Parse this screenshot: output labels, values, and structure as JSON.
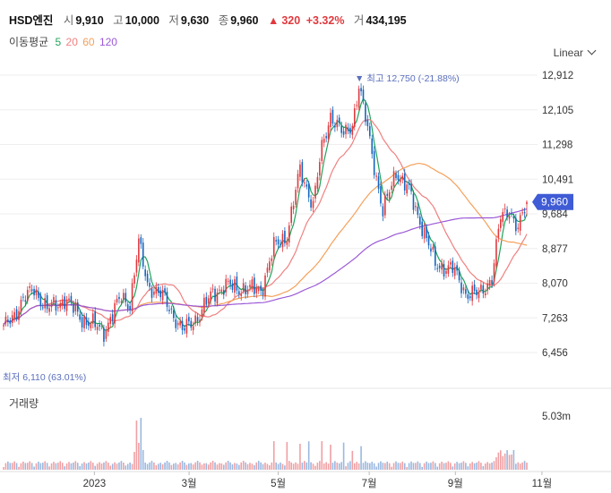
{
  "header": {
    "name": "HSD엔진",
    "open_label": "시",
    "open": "9,910",
    "high_label": "고",
    "high": "10,000",
    "low_label": "저",
    "low": "9,630",
    "close_label": "종",
    "close": "9,960",
    "change_arrow": "▲",
    "change": "320",
    "change_pct": "+3.32%",
    "volume_label": "거",
    "volume": "434,195"
  },
  "ma": {
    "label": "이동평균",
    "p5": "5",
    "p20": "20",
    "p60": "60",
    "p120": "120"
  },
  "scale_button": "Linear",
  "price_axis": [
    "12,912",
    "12,105",
    "11,298",
    "10,491",
    "9,684",
    "8,877",
    "8,070",
    "7,263",
    "6,456"
  ],
  "current_price_tag": "9,960",
  "max_annotation": "▼ 최고 12,750 (-21.88%)",
  "min_annotation": "최저 6,110 (63.01%)",
  "volume_panel": {
    "label": "거래량",
    "axis": "5.03m"
  },
  "x_axis": [
    "2023",
    "3월",
    "5월",
    "7월",
    "9월",
    "11월"
  ],
  "colors": {
    "up": "#e0393e",
    "down": "#1565c0",
    "ma5": "#21a35a",
    "ma20": "#f08080",
    "ma60": "#f5a05a",
    "ma120": "#9b59d6",
    "tag": "#3f5bd5"
  },
  "chart_data": {
    "type": "candlestick",
    "y_range": [
      6456,
      12912
    ],
    "volume_range_max": "5.03m",
    "series": [
      {
        "name": "5",
        "color": "#21a35a"
      },
      {
        "name": "20",
        "color": "#f08080"
      },
      {
        "name": "60",
        "color": "#f5a05a"
      },
      {
        "name": "120",
        "color": "#9b59d6"
      }
    ],
    "last": {
      "open": 9910,
      "high": 10000,
      "low": 9630,
      "close": 9960
    },
    "max": 12750,
    "min": 6110,
    "anchors": [
      [
        0,
        7000
      ],
      [
        8,
        7600
      ],
      [
        14,
        7950
      ],
      [
        20,
        7450
      ],
      [
        28,
        7700
      ],
      [
        36,
        7250
      ],
      [
        46,
        6950
      ],
      [
        54,
        7750
      ],
      [
        58,
        7600
      ],
      [
        62,
        9000
      ],
      [
        66,
        8050
      ],
      [
        74,
        7700
      ],
      [
        82,
        6950
      ],
      [
        90,
        7350
      ],
      [
        96,
        7850
      ],
      [
        102,
        8000
      ],
      [
        110,
        7950
      ],
      [
        118,
        7900
      ],
      [
        124,
        8900
      ],
      [
        130,
        9200
      ],
      [
        136,
        10700
      ],
      [
        142,
        9900
      ],
      [
        146,
        11200
      ],
      [
        150,
        12000
      ],
      [
        156,
        11500
      ],
      [
        160,
        11800
      ],
      [
        163,
        12650
      ],
      [
        168,
        11400
      ],
      [
        174,
        9700
      ],
      [
        180,
        10700
      ],
      [
        186,
        10200
      ],
      [
        192,
        9400
      ],
      [
        198,
        8500
      ],
      [
        206,
        8400
      ],
      [
        212,
        7850
      ],
      [
        218,
        7800
      ],
      [
        224,
        8200
      ],
      [
        228,
        9600
      ],
      [
        232,
        9800
      ],
      [
        236,
        9300
      ],
      [
        240,
        9960
      ]
    ]
  }
}
